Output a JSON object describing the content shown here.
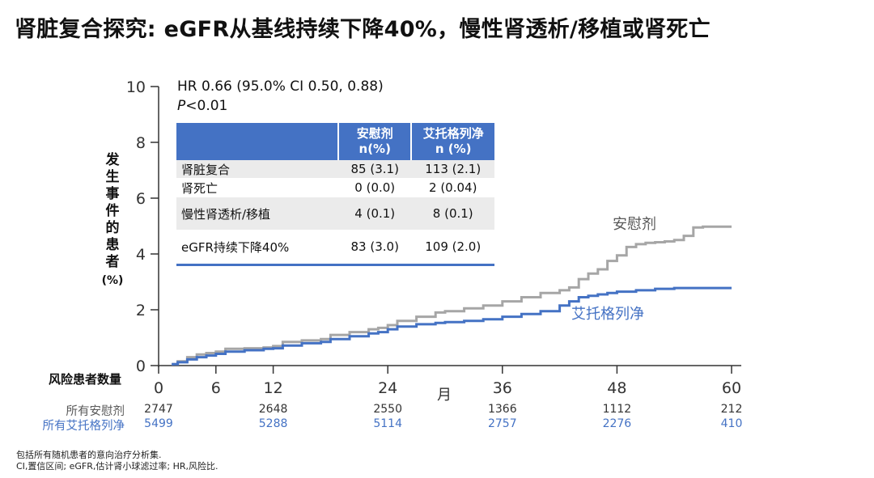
{
  "title": "肾脏复合探究: eGFR从基线持续下降40%，慢性肾透析/移植或肾死亡",
  "ylabel_chars": [
    "发",
    "生",
    "事",
    "件",
    "的",
    "患",
    "者"
  ],
  "ylabel_unit": "(%)",
  "stats": {
    "hr": "HR 0.66 (95.0% CI 0.50, 0.88)",
    "p_italic": "P",
    "p_rest": "<0.01"
  },
  "table": {
    "headers": [
      {
        "line1": "安慰剂",
        "line2": "n(%)"
      },
      {
        "line1": "艾托格列净",
        "line2": "n (%)"
      }
    ],
    "rows": [
      {
        "label": "肾脏复合",
        "placebo": "85 (3.1)",
        "ertu": "113 (2.1)"
      },
      {
        "label": "肾死亡",
        "placebo": "0 (0.0)",
        "ertu": "2 (0.04)"
      },
      {
        "label": "慢性肾透析/移植",
        "placebo": "4 (0.1)",
        "ertu": "8 (0.1)"
      },
      {
        "label": "eGFR持续下降40%",
        "placebo": "83 (3.0)",
        "ertu": "109 (2.0)"
      }
    ]
  },
  "risk": {
    "title": "风险患者数量",
    "placebo_label": "所有安慰剂",
    "ertu_label": "所有艾托格列净",
    "placebo": [
      "2747",
      "2648",
      "2550",
      "1366",
      "1112",
      "212"
    ],
    "ertu": [
      "5499",
      "5288",
      "5114",
      "2757",
      "2276",
      "410"
    ],
    "months": [
      0,
      12,
      24,
      36,
      48,
      60
    ]
  },
  "footnote": {
    "line1": "包括所有随机患者的意向治疗分析集.",
    "line2": "CI,置信区间; eGFR,估计肾小球滤过率; HR,风险比."
  },
  "colors": {
    "placebo": "#a6a6a6",
    "ertu": "#4472c4",
    "axis": "#333333"
  },
  "chart_data": {
    "type": "line",
    "title": "肾脏复合探究: eGFR从基线持续下降40%，慢性肾透析/移植或肾死亡",
    "xlabel": "月",
    "ylabel": "发生事件的患者 (%)",
    "xlim": [
      0,
      60
    ],
    "ylim": [
      0,
      10
    ],
    "xticks": [
      0,
      6,
      12,
      24,
      36,
      48,
      60
    ],
    "yticks": [
      0,
      2,
      4,
      6,
      8,
      10
    ],
    "series": [
      {
        "name": "安慰剂",
        "color": "#a6a6a6",
        "x": [
          1.5,
          2,
          3,
          4,
          5,
          6,
          7,
          9,
          11,
          12,
          13,
          15,
          17,
          18,
          20,
          22,
          23,
          24,
          25,
          27,
          29,
          30,
          32,
          34,
          36,
          38,
          40,
          42,
          43,
          44,
          45,
          46,
          47,
          48,
          49,
          50,
          51,
          52,
          53,
          54,
          55,
          56,
          57,
          58,
          60
        ],
        "y": [
          0.05,
          0.15,
          0.3,
          0.4,
          0.45,
          0.5,
          0.6,
          0.62,
          0.65,
          0.7,
          0.85,
          0.9,
          0.95,
          1.1,
          1.2,
          1.3,
          1.35,
          1.45,
          1.6,
          1.75,
          1.9,
          1.95,
          2.05,
          2.15,
          2.3,
          2.45,
          2.6,
          2.7,
          2.8,
          3.1,
          3.3,
          3.45,
          3.75,
          3.95,
          4.25,
          4.35,
          4.4,
          4.42,
          4.45,
          4.5,
          4.65,
          4.95,
          4.98,
          4.98,
          4.98
        ]
      },
      {
        "name": "艾托格列净",
        "color": "#4472c4",
        "x": [
          1.5,
          2,
          3,
          4,
          5,
          6,
          7,
          9,
          11,
          12,
          13,
          15,
          17,
          18,
          20,
          22,
          23,
          24,
          25,
          27,
          29,
          30,
          32,
          34,
          36,
          38,
          40,
          42,
          43,
          44,
          45,
          46,
          47,
          48,
          50,
          52,
          54,
          56,
          58,
          60
        ],
        "y": [
          0.05,
          0.12,
          0.22,
          0.3,
          0.36,
          0.42,
          0.5,
          0.55,
          0.6,
          0.62,
          0.72,
          0.8,
          0.85,
          0.95,
          1.05,
          1.15,
          1.2,
          1.3,
          1.4,
          1.48,
          1.53,
          1.56,
          1.6,
          1.66,
          1.75,
          1.85,
          1.95,
          2.15,
          2.3,
          2.45,
          2.5,
          2.55,
          2.6,
          2.65,
          2.7,
          2.75,
          2.78,
          2.78,
          2.78,
          2.78
        ]
      }
    ],
    "annotations": [
      {
        "text": "安慰剂",
        "series": "安慰剂"
      },
      {
        "text": "艾托格列净",
        "series": "艾托格列净"
      }
    ]
  }
}
